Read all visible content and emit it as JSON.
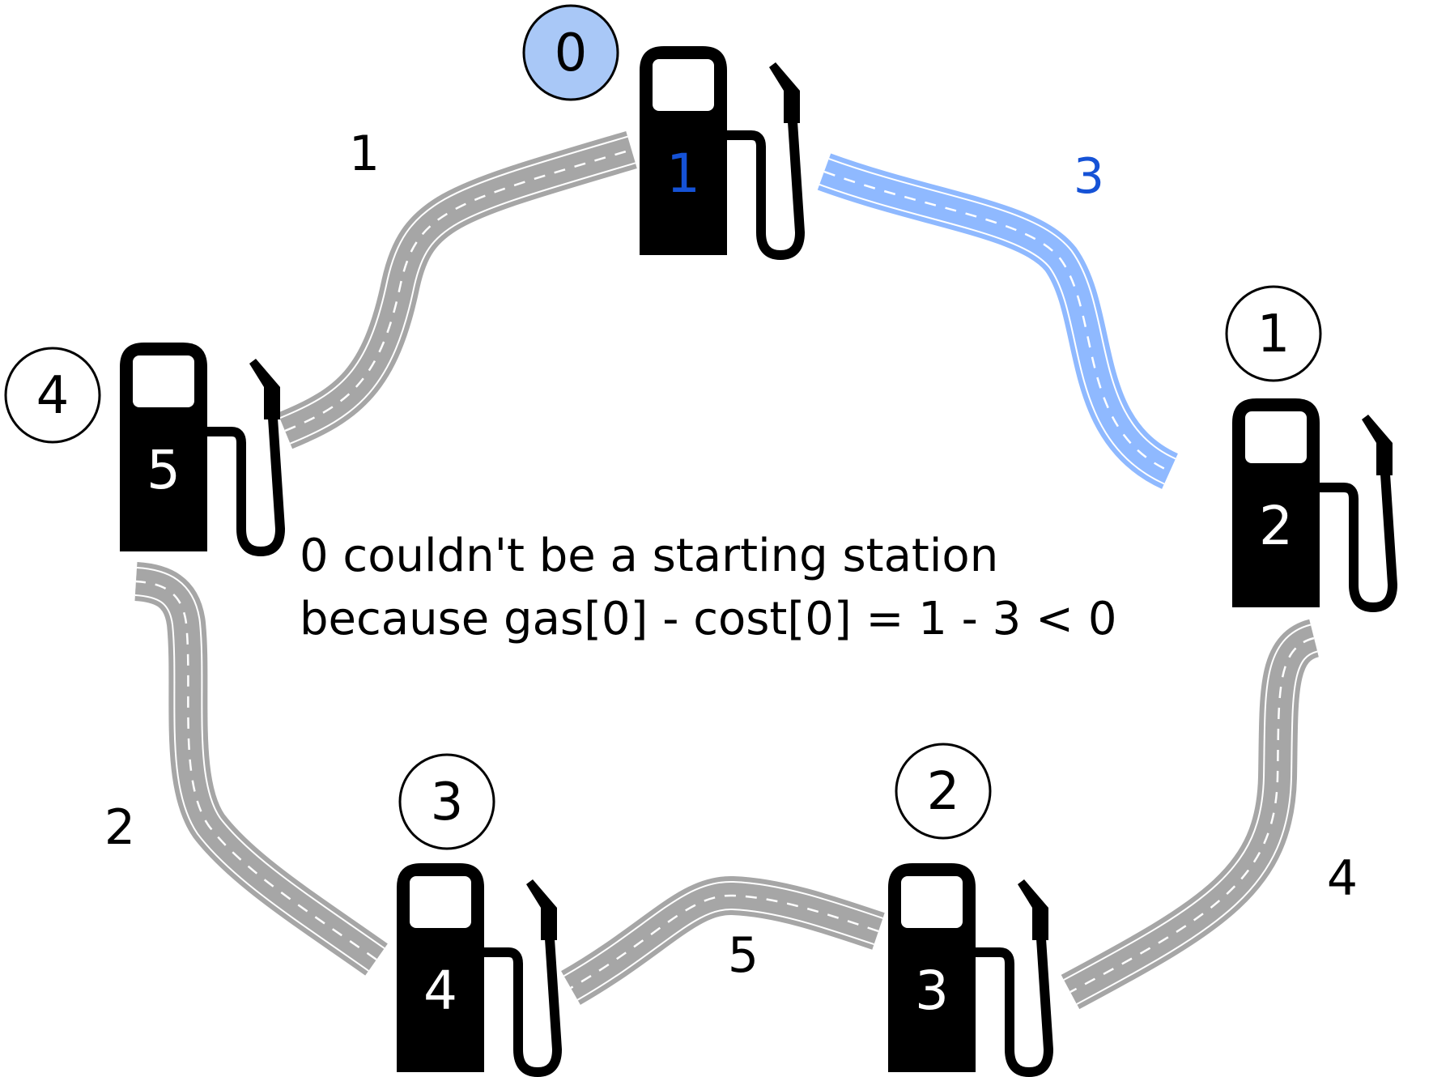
{
  "colors": {
    "road": "#a6a6a6",
    "road_highlight": "#8fb9ff",
    "pump": "#000000",
    "text": "#000000",
    "highlight_text": "#1552d6",
    "badge_highlight_fill": "#a9c8f7"
  },
  "stations": [
    {
      "index": "0",
      "gas": "1",
      "highlighted": true
    },
    {
      "index": "1",
      "gas": "2",
      "highlighted": false
    },
    {
      "index": "2",
      "gas": "3",
      "highlighted": false
    },
    {
      "index": "3",
      "gas": "4",
      "highlighted": false
    },
    {
      "index": "4",
      "gas": "5",
      "highlighted": false
    }
  ],
  "roads": [
    {
      "from": "0",
      "to": "1",
      "cost": "3",
      "highlighted": true
    },
    {
      "from": "1",
      "to": "2",
      "cost": "4",
      "highlighted": false
    },
    {
      "from": "2",
      "to": "3",
      "cost": "5",
      "highlighted": false
    },
    {
      "from": "3",
      "to": "4",
      "cost": "2",
      "highlighted": false
    },
    {
      "from": "4",
      "to": "0",
      "cost": "1",
      "highlighted": false
    }
  ],
  "caption": {
    "line1": "0 couldn't be a starting station",
    "line2": "because gas[0] - cost[0] = 1 - 3 < 0"
  }
}
